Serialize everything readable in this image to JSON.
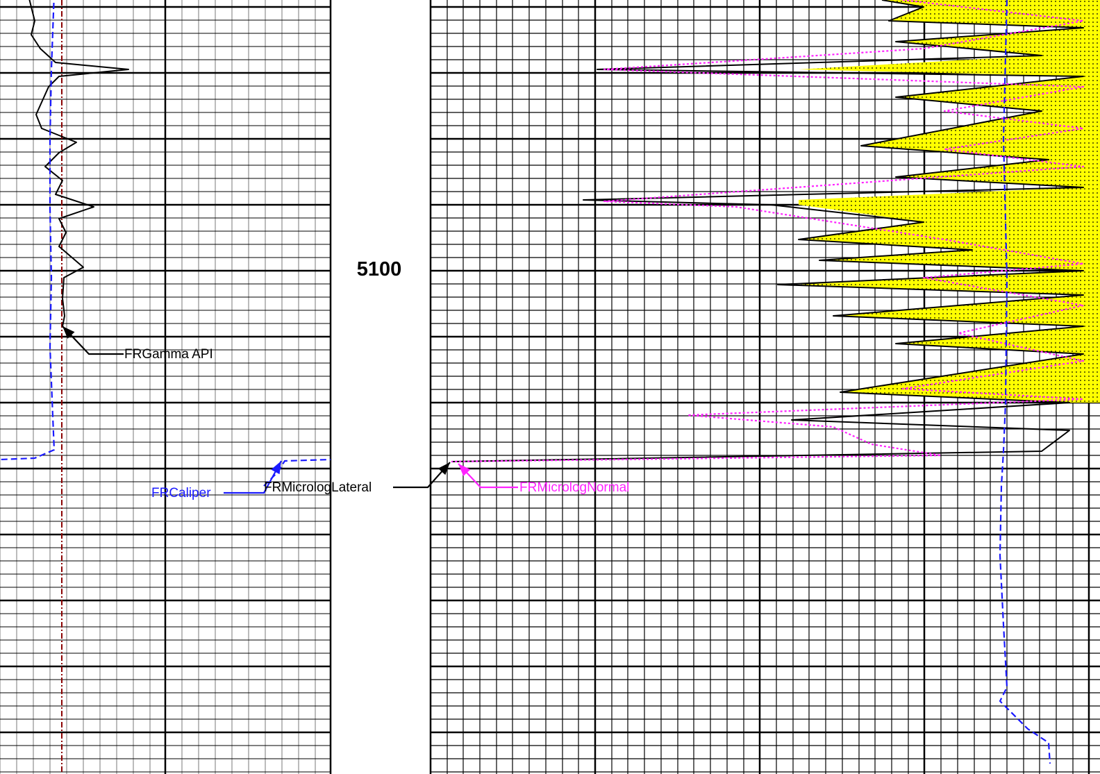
{
  "depth_marker": "5100",
  "colors": {
    "gamma": "#000000",
    "caliper": "#1a1aff",
    "bit_size": "#8b0000",
    "micro_lateral": "#000000",
    "micro_normal": "#ff22ff",
    "fill": "#ffff00"
  },
  "chart_data": {
    "type": "line",
    "title": "",
    "grid": true,
    "series": [
      {
        "name": "FRGamma API",
        "points": [
          [
            40,
            -10
          ],
          [
            45,
            10
          ],
          [
            50,
            30
          ],
          [
            45,
            50
          ],
          [
            58,
            70
          ],
          [
            80,
            90
          ],
          [
            185,
            100
          ],
          [
            85,
            110
          ],
          [
            70,
            125
          ],
          [
            52,
            165
          ],
          [
            60,
            185
          ],
          [
            110,
            205
          ],
          [
            85,
            220
          ],
          [
            65,
            240
          ],
          [
            90,
            260
          ],
          [
            80,
            280
          ],
          [
            135,
            298
          ],
          [
            85,
            315
          ],
          [
            95,
            335
          ],
          [
            85,
            355
          ],
          [
            120,
            385
          ],
          [
            92,
            400
          ],
          [
            90,
            430
          ],
          [
            93,
            455
          ],
          [
            90,
            470
          ]
        ]
      },
      {
        "name": "FRCaliper",
        "points": [
          [
            78,
            -10
          ],
          [
            74,
            100
          ],
          [
            72,
            200
          ],
          [
            72,
            300
          ],
          [
            74,
            400
          ],
          [
            72,
            500
          ],
          [
            76,
            600
          ],
          [
            78,
            648
          ],
          [
            50,
            660
          ],
          [
            0,
            662
          ]
        ]
      },
      {
        "name": "FRCaliper",
        "points": [
          [
            380,
            700
          ],
          [
            400,
            680
          ],
          [
            410,
            664
          ],
          [
            476,
            662
          ]
        ]
      },
      {
        "name": "FRMicrologLateral",
        "points": [
          [
            1270,
            0
          ],
          [
            1330,
            10
          ],
          [
            1280,
            30
          ],
          [
            1560,
            40
          ],
          [
            1290,
            60
          ],
          [
            1500,
            80
          ],
          [
            860,
            100
          ],
          [
            1560,
            110
          ],
          [
            1290,
            140
          ],
          [
            1500,
            160
          ],
          [
            1240,
            210
          ],
          [
            1510,
            230
          ],
          [
            1290,
            255
          ],
          [
            1560,
            270
          ],
          [
            840,
            288
          ],
          [
            1110,
            295
          ],
          [
            1330,
            320
          ],
          [
            1150,
            345
          ],
          [
            1400,
            360
          ],
          [
            1180,
            375
          ],
          [
            1560,
            390
          ],
          [
            1120,
            410
          ],
          [
            1560,
            425
          ],
          [
            1200,
            455
          ],
          [
            1560,
            470
          ],
          [
            1290,
            495
          ],
          [
            1560,
            510
          ],
          [
            1210,
            565
          ],
          [
            1540,
            580
          ],
          [
            1140,
            605
          ],
          [
            1540,
            620
          ],
          [
            1500,
            650
          ],
          [
            650,
            665
          ]
        ]
      },
      {
        "name": "FRMicrologNormal",
        "points": [
          [
            1300,
            0
          ],
          [
            1560,
            30
          ],
          [
            1330,
            70
          ],
          [
            870,
            100
          ],
          [
            1560,
            125
          ],
          [
            1360,
            160
          ],
          [
            1560,
            185
          ],
          [
            1360,
            215
          ],
          [
            1560,
            240
          ],
          [
            870,
            290
          ],
          [
            1060,
            298
          ],
          [
            1360,
            345
          ],
          [
            1560,
            380
          ],
          [
            1330,
            400
          ],
          [
            1560,
            440
          ],
          [
            1380,
            480
          ],
          [
            1560,
            520
          ],
          [
            1300,
            560
          ],
          [
            1560,
            575
          ],
          [
            990,
            598
          ],
          [
            1200,
            615
          ],
          [
            1255,
            640
          ],
          [
            1355,
            656
          ],
          [
            650,
            665
          ]
        ]
      },
      {
        "name": "",
        "points": [
          [
            1450,
            0
          ],
          [
            1445,
            200
          ],
          [
            1450,
            400
          ],
          [
            1448,
            580
          ],
          [
            1445,
            650
          ],
          [
            1442,
            700
          ],
          [
            1440,
            800
          ],
          [
            1445,
            900
          ],
          [
            1450,
            990
          ],
          [
            1440,
            1010
          ],
          [
            1480,
            1050
          ],
          [
            1510,
            1070
          ],
          [
            1512,
            1100
          ]
        ]
      }
    ],
    "annotations": [
      {
        "text": "FRGamma API",
        "color": "#000000"
      },
      {
        "text": "FRCaliper",
        "color": "#1a1aff"
      },
      {
        "text": "FRMicrologLateral",
        "color": "#000000"
      },
      {
        "text": "FRMicrologNormal",
        "color": "#ff22ff"
      }
    ]
  }
}
